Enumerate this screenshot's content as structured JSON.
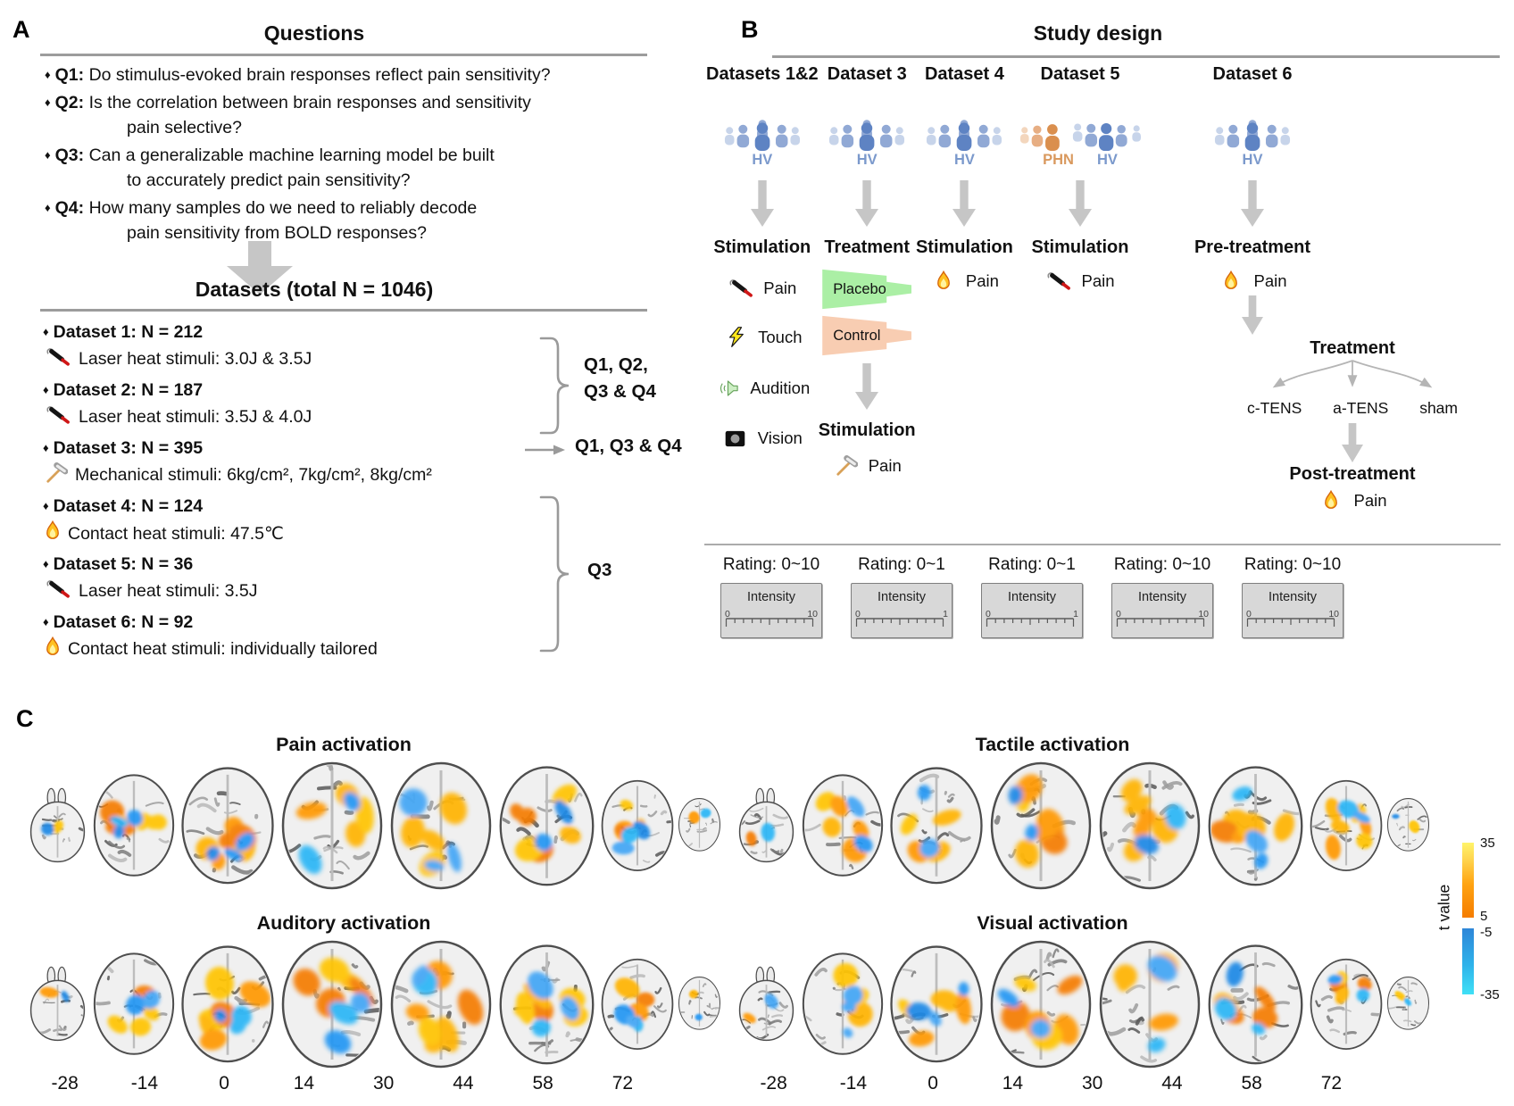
{
  "glyphs": {
    "bullet": "♦"
  },
  "colors": {
    "hv_blue": "#7b99cc",
    "phn_orange": "#d9995e",
    "placebo_green": "#abefa5",
    "control_peach": "#f8cdb2",
    "activation_orange": "#f59b00",
    "activation_blue": "#2d9bf0",
    "arrow_gray": "#c6c6c6",
    "line_gray": "#9c9c9c"
  },
  "panelA": {
    "label": "A",
    "title": "Questions",
    "questions": [
      {
        "id": "Q1:",
        "line1": "Do stimulus-evoked brain responses reflect pain sensitivity?",
        "line2": ""
      },
      {
        "id": "Q2:",
        "line1": "Is the correlation between brain responses and sensitivity",
        "line2": "pain selective?"
      },
      {
        "id": "Q3:",
        "line1": "Can a generalizable machine learning model be built",
        "line2": "to accurately predict pain sensitivity?"
      },
      {
        "id": "Q4:",
        "line1": "How many samples do we need to reliably decode",
        "line2": "pain sensitivity from BOLD responses?"
      }
    ],
    "datasets_title": "Datasets (total N = 1046)",
    "datasets": [
      {
        "name": "Dataset 1: N = 212",
        "icon": "laser-icon",
        "desc": "Laser heat stimuli: 3.0J & 3.5J"
      },
      {
        "name": "Dataset 2: N = 187",
        "icon": "laser-icon",
        "desc": "Laser heat stimuli: 3.5J & 4.0J"
      },
      {
        "name": "Dataset 3: N = 395",
        "icon": "hammer-icon",
        "desc": "Mechanical stimuli: 6kg/cm², 7kg/cm², 8kg/cm²"
      },
      {
        "name": "Dataset 4: N = 124",
        "icon": "flame-icon",
        "desc": "Contact heat stimuli: 47.5℃"
      },
      {
        "name": "Dataset 5: N = 36",
        "icon": "laser-icon",
        "desc": "Laser heat stimuli: 3.5J"
      },
      {
        "name": "Dataset 6: N = 92",
        "icon": "flame-icon",
        "desc": "Contact heat stimuli: individually tailored"
      }
    ],
    "annotations": {
      "bracket1_line1": "Q1, Q2,",
      "bracket1_line2": "Q3 & Q4",
      "arrow_label": "Q1, Q3 & Q4",
      "bracket2_label": "Q3"
    }
  },
  "panelB": {
    "label": "B",
    "title": "Study design",
    "intensity_label": "Intensity",
    "columns": [
      {
        "header": "Datasets 1&2",
        "cohorts": [
          {
            "label": "HV",
            "color": "blue"
          }
        ],
        "phase": "Stimulation",
        "stimuli": [
          {
            "icon": "laser-icon",
            "label": "Pain"
          },
          {
            "icon": "lightning-icon",
            "label": "Touch"
          },
          {
            "icon": "speaker-icon",
            "label": "Audition"
          },
          {
            "icon": "screen-icon",
            "label": "Vision"
          }
        ],
        "rating": "Rating: 0~10",
        "scale_min": "0",
        "scale_max": "10"
      },
      {
        "header": "Dataset 3",
        "cohorts": [
          {
            "label": "HV",
            "color": "blue"
          }
        ],
        "phase": "Treatment",
        "treatments": [
          {
            "label": "Placebo"
          },
          {
            "label": "Control"
          }
        ],
        "phase2": "Stimulation",
        "stimuli2": [
          {
            "icon": "hammer-icon",
            "label": "Pain"
          }
        ],
        "rating": "Rating: 0~1",
        "scale_min": "0",
        "scale_max": "1"
      },
      {
        "header": "Dataset 4",
        "cohorts": [
          {
            "label": "HV",
            "color": "blue"
          }
        ],
        "phase": "Stimulation",
        "stimuli": [
          {
            "icon": "flame-icon",
            "label": "Pain"
          }
        ],
        "rating": "Rating: 0~1",
        "scale_min": "0",
        "scale_max": "1"
      },
      {
        "header": "Dataset 5",
        "cohorts": [
          {
            "label": "PHN",
            "color": "orange"
          },
          {
            "label": "HV",
            "color": "blue"
          }
        ],
        "phase": "Stimulation",
        "stimuli": [
          {
            "icon": "laser-icon",
            "label": "Pain"
          }
        ],
        "rating": "Rating: 0~10",
        "scale_min": "0",
        "scale_max": "10"
      },
      {
        "header": "Dataset 6",
        "cohorts": [
          {
            "label": "HV",
            "color": "blue"
          }
        ],
        "phase": "Pre-treatment",
        "stimuli": [
          {
            "icon": "flame-icon",
            "label": "Pain"
          }
        ],
        "phase2": "Treatment",
        "treatment_options": [
          "c-TENS",
          "a-TENS",
          "sham"
        ],
        "phase3": "Post-treatment",
        "stimuli3": [
          {
            "icon": "flame-icon",
            "label": "Pain"
          }
        ],
        "rating": "Rating: 0~10",
        "scale_min": "0",
        "scale_max": "10"
      }
    ]
  },
  "panelC": {
    "label": "C",
    "groups": [
      {
        "title": "Pain activation"
      },
      {
        "title": "Tactile activation"
      },
      {
        "title": "Auditory activation"
      },
      {
        "title": "Visual activation"
      }
    ],
    "slice_labels": [
      "-28",
      "-14",
      "0",
      "14",
      "30",
      "44",
      "58",
      "72"
    ],
    "colorbar": {
      "label": "t value",
      "tick_top": "35",
      "tick_mid_pos": "5",
      "tick_mid_neg": "-5",
      "tick_bottom": "-35"
    }
  }
}
